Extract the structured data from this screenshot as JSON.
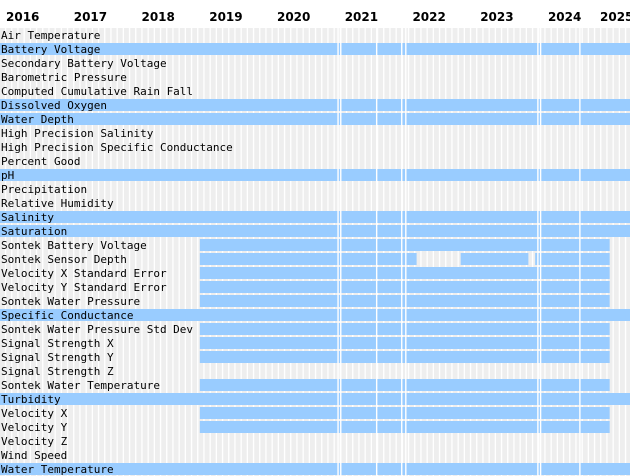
{
  "chart_data": {
    "type": "timeline",
    "x_axis": {
      "ticks": [
        "2016",
        "2017",
        "2018",
        "2019",
        "2020",
        "2021",
        "2022",
        "2023",
        "2024",
        "2025"
      ],
      "range": [
        2016.0,
        2025.3
      ]
    },
    "colors": {
      "available": "#99ccff",
      "background_grid": "#eeeeee",
      "gap_line": "#ffffff"
    },
    "series": [
      {
        "name": "Air Temperature",
        "values": []
      },
      {
        "name": "Battery Voltage",
        "values": [
          [
            2016.0,
            2025.3
          ]
        ]
      },
      {
        "name": "Secondary Battery Voltage",
        "values": []
      },
      {
        "name": "Barometric Pressure",
        "values": []
      },
      {
        "name": "Computed Cumulative Rain Fall",
        "values": []
      },
      {
        "name": "Dissolved Oxygen",
        "values": [
          [
            2016.0,
            2025.3
          ]
        ]
      },
      {
        "name": "Water Depth",
        "values": [
          [
            2016.0,
            2025.3
          ]
        ]
      },
      {
        "name": "High Precision Salinity",
        "values": []
      },
      {
        "name": "High Precision Specific Conductance",
        "values": []
      },
      {
        "name": "Percent Good",
        "values": []
      },
      {
        "name": "pH",
        "values": [
          [
            2016.0,
            2025.3
          ]
        ]
      },
      {
        "name": "Precipitation",
        "values": []
      },
      {
        "name": "Relative Humidity",
        "values": []
      },
      {
        "name": "Salinity",
        "values": [
          [
            2016.0,
            2025.3
          ]
        ]
      },
      {
        "name": "Saturation",
        "values": [
          [
            2016.0,
            2025.3
          ]
        ]
      },
      {
        "name": "Sontek Battery Voltage",
        "values": [
          [
            2018.95,
            2025.0
          ]
        ]
      },
      {
        "name": "Sontek Sensor Depth",
        "values": [
          [
            2018.95,
            2022.15
          ],
          [
            2022.8,
            2023.8
          ],
          [
            2023.9,
            2025.0
          ]
        ]
      },
      {
        "name": "Velocity X Standard Error",
        "values": [
          [
            2018.95,
            2025.0
          ]
        ]
      },
      {
        "name": "Velocity Y Standard Error",
        "values": [
          [
            2018.95,
            2025.0
          ]
        ]
      },
      {
        "name": "Sontek Water Pressure",
        "values": [
          [
            2018.95,
            2025.0
          ]
        ]
      },
      {
        "name": "Specific Conductance",
        "values": [
          [
            2016.0,
            2025.3
          ]
        ]
      },
      {
        "name": "Sontek Water Pressure Std Dev",
        "values": [
          [
            2018.95,
            2025.0
          ]
        ]
      },
      {
        "name": "Signal Strength X",
        "values": [
          [
            2018.95,
            2025.0
          ]
        ]
      },
      {
        "name": "Signal Strength Y",
        "values": [
          [
            2018.95,
            2025.0
          ]
        ]
      },
      {
        "name": "Signal Strength Z",
        "values": []
      },
      {
        "name": "Sontek Water Temperature",
        "values": [
          [
            2018.95,
            2025.0
          ]
        ]
      },
      {
        "name": "Turbidity",
        "values": [
          [
            2016.0,
            2025.3
          ]
        ]
      },
      {
        "name": "Velocity X",
        "values": [
          [
            2018.95,
            2025.0
          ]
        ]
      },
      {
        "name": "Velocity Y",
        "values": [
          [
            2018.95,
            2025.0
          ]
        ]
      },
      {
        "name": "Velocity Z",
        "values": []
      },
      {
        "name": "Wind Speed",
        "values": []
      },
      {
        "name": "Water Temperature",
        "values": [
          [
            2016.0,
            2025.3
          ]
        ]
      }
    ]
  }
}
